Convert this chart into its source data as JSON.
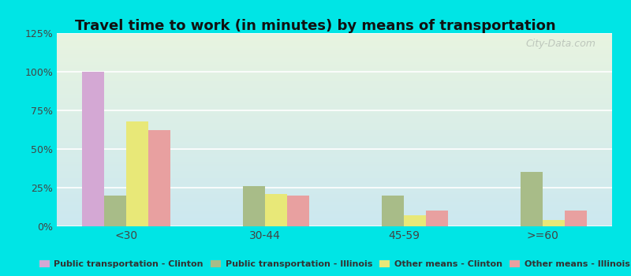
{
  "title": "Travel time to work (in minutes) by means of transportation",
  "categories": [
    "<30",
    "30-44",
    "45-59",
    ">=60"
  ],
  "series": {
    "Public transportation - Clinton": [
      100,
      0,
      0,
      0
    ],
    "Public transportation - Illinois": [
      20,
      26,
      20,
      35
    ],
    "Other means - Clinton": [
      68,
      21,
      7,
      4
    ],
    "Other means - Illinois": [
      62,
      20,
      10,
      10
    ]
  },
  "colors": {
    "Public transportation - Clinton": "#d4a8d4",
    "Public transportation - Illinois": "#a8bc88",
    "Other means - Clinton": "#e8e878",
    "Other means - Illinois": "#e8a0a0"
  },
  "ylim": [
    0,
    125
  ],
  "yticks": [
    0,
    25,
    50,
    75,
    100,
    125
  ],
  "ytick_labels": [
    "0%",
    "25%",
    "50%",
    "75%",
    "100%",
    "125%"
  ],
  "background_color": "#00e5e5",
  "plot_bg_top": "#e8f4e0",
  "plot_bg_bottom": "#cce8f0",
  "watermark": "City-Data.com",
  "bar_width": 0.16,
  "title_fontsize": 13,
  "tick_fontsize": 9,
  "legend_fontsize": 8
}
